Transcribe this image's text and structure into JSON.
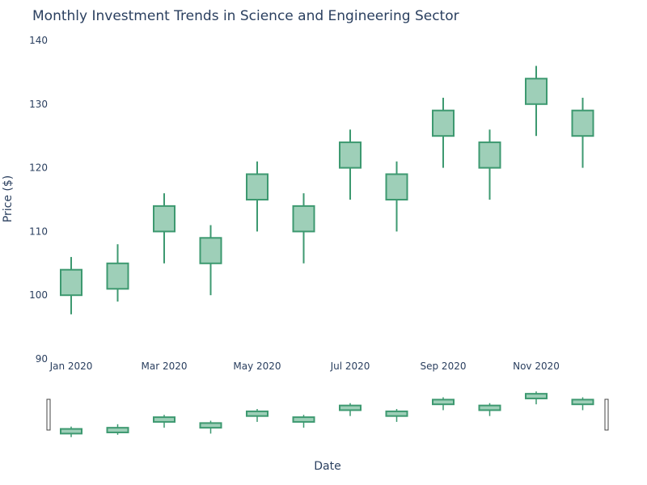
{
  "chart_data": {
    "type": "candlestick",
    "title": "Monthly Investment Trends in Science and Engineering Sector",
    "xlabel": "Date",
    "ylabel": "Price ($)",
    "ylim": [
      90,
      140
    ],
    "yticks": [
      "90",
      "100",
      "110",
      "120",
      "130",
      "140"
    ],
    "x_tick_labels": [
      {
        "date": "2020-01",
        "label": "Jan 2020"
      },
      {
        "date": "2020-03",
        "label": "Mar 2020"
      },
      {
        "date": "2020-05",
        "label": "May 2020"
      },
      {
        "date": "2020-07",
        "label": "Jul 2020"
      },
      {
        "date": "2020-09",
        "label": "Sep 2020"
      },
      {
        "date": "2020-11",
        "label": "Nov 2020"
      }
    ],
    "candles": [
      {
        "date": "2020-01",
        "open": 100,
        "high": 106,
        "low": 97,
        "close": 104
      },
      {
        "date": "2020-02",
        "open": 101,
        "high": 108,
        "low": 99,
        "close": 105
      },
      {
        "date": "2020-03",
        "open": 110,
        "high": 116,
        "low": 105,
        "close": 114
      },
      {
        "date": "2020-04",
        "open": 105,
        "high": 111,
        "low": 100,
        "close": 109
      },
      {
        "date": "2020-05",
        "open": 115,
        "high": 121,
        "low": 110,
        "close": 119
      },
      {
        "date": "2020-06",
        "open": 110,
        "high": 116,
        "low": 105,
        "close": 114
      },
      {
        "date": "2020-07",
        "open": 120,
        "high": 126,
        "low": 115,
        "close": 124
      },
      {
        "date": "2020-08",
        "open": 115,
        "high": 121,
        "low": 110,
        "close": 119
      },
      {
        "date": "2020-09",
        "open": 125,
        "high": 131,
        "low": 120,
        "close": 129
      },
      {
        "date": "2020-10",
        "open": 120,
        "high": 126,
        "low": 115,
        "close": 124
      },
      {
        "date": "2020-11",
        "open": 130,
        "high": 136,
        "low": 125,
        "close": 134
      },
      {
        "date": "2020-12",
        "open": 125,
        "high": 131,
        "low": 120,
        "close": 129
      }
    ],
    "increasing_color": "#3d9970",
    "increasing_fill": "#9ecfb8",
    "rangeslider": true,
    "grid": false,
    "legend": "none"
  }
}
